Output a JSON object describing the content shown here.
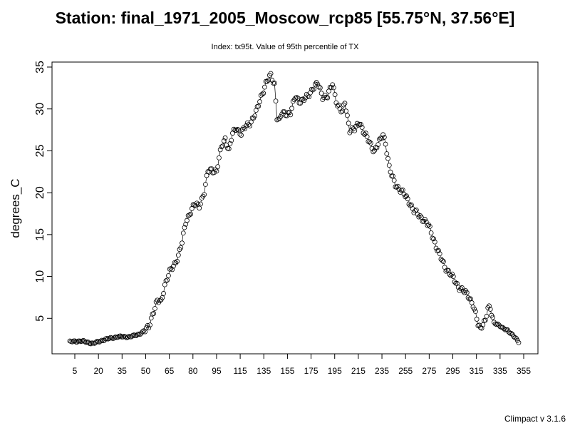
{
  "chart_data": {
    "type": "scatter",
    "marker": "open-circle",
    "connected": true,
    "title": "Station: final_1971_2005_Moscow_rcp85 [55.75°N, 37.56°E]",
    "subtitle": "Index: tx95t. Value of 95th percentile of TX",
    "xlabel": "",
    "ylabel": "degrees_C",
    "xlim": [
      1,
      365
    ],
    "ylim": [
      0,
      35
    ],
    "x_ticks": [
      "5",
      "20",
      "35",
      "50",
      "65",
      "80",
      "95",
      "115",
      "135",
      "155",
      "175",
      "195",
      "215",
      "235",
      "255",
      "275",
      "295",
      "315",
      "335",
      "355"
    ],
    "y_ticks": [
      "5",
      "10",
      "15",
      "20",
      "25",
      "30",
      "35"
    ],
    "grid": false,
    "key_points": {
      "x": [
        1,
        10,
        20,
        30,
        40,
        50,
        55,
        58,
        62,
        65,
        68,
        72,
        75,
        78,
        82,
        86,
        89,
        92,
        95,
        98,
        102,
        106,
        110,
        113,
        116,
        120,
        124,
        127,
        130,
        133,
        136,
        140,
        144,
        148,
        152,
        156,
        160,
        164,
        167,
        169,
        171,
        173,
        176,
        180,
        184,
        187,
        190,
        194,
        198,
        202,
        206,
        210,
        214,
        218,
        222,
        224,
        228,
        232,
        236,
        240,
        244,
        248,
        252,
        255,
        257,
        260,
        262,
        265,
        268,
        272,
        276,
        280,
        284,
        288,
        292,
        296,
        300,
        305,
        310,
        315,
        320,
        325,
        328,
        330,
        332,
        334,
        336,
        338,
        340,
        342,
        345,
        348,
        352,
        356,
        360,
        365
      ],
      "y": [
        2.2,
        2.3,
        2.0,
        2.5,
        2.8,
        2.8,
        3.0,
        3.2,
        3.5,
        4.0,
        5.5,
        7.0,
        7.0,
        9.0,
        10.5,
        11.5,
        12.5,
        14.0,
        16.5,
        17.5,
        18.5,
        18.5,
        20.0,
        22.5,
        22.8,
        22.5,
        25.5,
        26.5,
        25.0,
        27.0,
        27.8,
        27.0,
        28.0,
        28.5,
        29.5,
        31.5,
        33.0,
        34.0,
        33.0,
        29.0,
        28.5,
        29.5,
        29.5,
        29.5,
        31.5,
        31.0,
        31.0,
        31.5,
        32.5,
        33.0,
        31.5,
        31.5,
        33.0,
        30.5,
        29.5,
        30.8,
        27.5,
        27.5,
        28.5,
        27.0,
        26.0,
        25.0,
        26.0,
        27.0,
        26.0,
        23.0,
        22.0,
        21.0,
        20.5,
        19.8,
        19.0,
        17.8,
        17.3,
        16.8,
        16.0,
        14.5,
        12.8,
        11.2,
        10.2,
        9.0,
        8.3,
        7.5,
        6.7,
        5.5,
        4.2,
        3.7,
        4.5,
        4.8,
        6.2,
        6.0,
        4.5,
        4.3,
        3.8,
        3.6,
        3.0,
        2.2
      ]
    }
  },
  "footer": "Climpact v 3.1.6"
}
